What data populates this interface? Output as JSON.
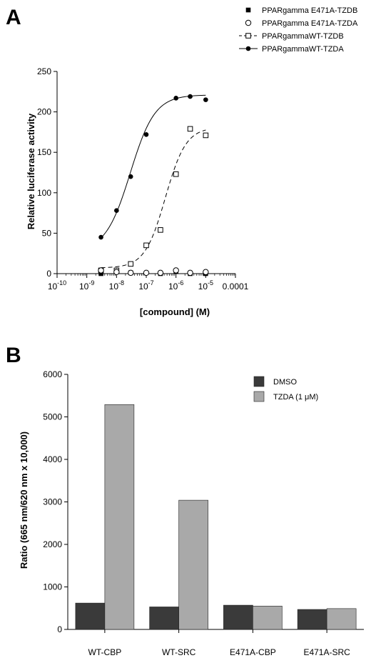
{
  "panels": [
    {
      "letter": "A",
      "chart_data": {
        "type": "scatter",
        "xscale": "log",
        "xlabel": "[compound]  (M)",
        "ylabel": "Relative luciferase activity",
        "xlim": [
          1e-10,
          0.0001
        ],
        "ylim": [
          0,
          250
        ],
        "yticks": [
          0,
          50,
          100,
          150,
          200,
          250
        ],
        "xticks": [
          {
            "value": 1e-10,
            "base": "10",
            "exp": "-10"
          },
          {
            "value": 1e-09,
            "base": "10",
            "exp": "-9"
          },
          {
            "value": 1e-08,
            "base": "10",
            "exp": "-8"
          },
          {
            "value": 1e-07,
            "base": "10",
            "exp": "-7"
          },
          {
            "value": 1e-06,
            "base": "10",
            "exp": "-6"
          },
          {
            "value": 1e-05,
            "base": "10",
            "exp": "-5"
          },
          {
            "value": 0.0001,
            "base": "0.0001",
            "exp": ""
          }
        ],
        "legend_position": "top-right",
        "series": [
          {
            "name": "PPARgamma E471A-TZDB",
            "marker": "filled-square",
            "line": "none",
            "x": [
              3e-09,
              3e-08,
              3e-07,
              1e-06,
              3e-06,
              1e-05
            ],
            "y": [
              0,
              1,
              0,
              3,
              0,
              0
            ]
          },
          {
            "name": "PPARgamma E471A-TZDA",
            "marker": "open-circle",
            "line": "none",
            "x": [
              3e-09,
              1e-08,
              3e-08,
              1e-07,
              3e-07,
              1e-06,
              3e-06,
              1e-05
            ],
            "y": [
              4,
              2,
              1,
              1,
              1,
              4,
              1,
              2
            ]
          },
          {
            "name": "PPARgammaWT-TZDB",
            "marker": "open-square",
            "line": "dashed",
            "x": [
              3e-09,
              1e-08,
              3e-08,
              1e-07,
              3e-07,
              1e-06,
              3e-06,
              1e-05
            ],
            "y": [
              4,
              4,
              12,
              35,
              54,
              123,
              179,
              171
            ],
            "fit": {
              "bottom": 7,
              "top": 181,
              "ec50": 4.4e-07,
              "hill": 1.25
            }
          },
          {
            "name": "PPARgammaWT-TZDA",
            "marker": "filled-circle",
            "line": "solid",
            "x": [
              3e-09,
              1e-08,
              3e-08,
              1e-07,
              1e-06,
              3e-06,
              1e-05
            ],
            "y": [
              45,
              78,
              120,
              172,
              217,
              219,
              215
            ],
            "fit": {
              "bottom": 28,
              "top": 221,
              "ec50": 2.9e-08,
              "hill": 1.05
            }
          }
        ]
      }
    },
    {
      "letter": "B",
      "chart_data": {
        "type": "bar",
        "ylabel": "Ratio (665 nm/620 nm  x 10,000)",
        "xlabel": "",
        "ylim": [
          0,
          6000
        ],
        "yticks": [
          0,
          1000,
          2000,
          3000,
          4000,
          5000,
          6000
        ],
        "categories": [
          "WT-CBP",
          "WT-SRC",
          "E471A-CBP",
          "E471A-SRC"
        ],
        "legend_position": "top-right",
        "series": [
          {
            "name": "DMSO",
            "color": "#3a3a3a",
            "values": [
              620,
              530,
              570,
              470
            ]
          },
          {
            "name": "TZDA (1 μM)",
            "color": "#a9a9a9",
            "values": [
              5290,
              3040,
              550,
              490
            ]
          }
        ]
      }
    }
  ]
}
